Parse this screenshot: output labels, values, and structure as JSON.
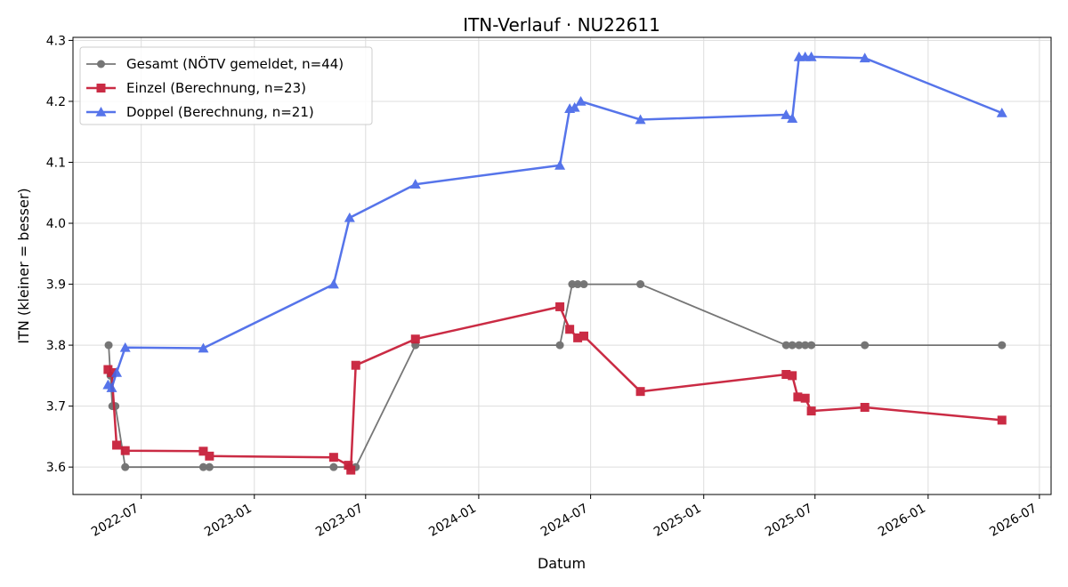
{
  "chart_data": {
    "type": "line",
    "title": "ITN-Verlauf · NU22611",
    "xlabel": "Datum",
    "ylabel": "ITN  (kleiner = besser)",
    "x_type": "date",
    "xlim": [
      "2022-03-12",
      "2026-07-20"
    ],
    "ylim": [
      3.555,
      4.305
    ],
    "x_ticks": [
      "2022-07",
      "2023-01",
      "2023-07",
      "2024-01",
      "2024-07",
      "2025-01",
      "2025-07",
      "2026-01",
      "2026-07"
    ],
    "y_ticks": [
      3.6,
      3.7,
      3.8,
      3.9,
      4.0,
      4.1,
      4.2,
      4.3
    ],
    "grid": true,
    "legend_position": "top-left",
    "series": [
      {
        "name": "Gesamt (NÖTV gemeldet, n=44)",
        "color": "#555555",
        "marker": "circle",
        "points": [
          [
            "2022-05-09",
            3.8
          ],
          [
            "2022-05-12",
            3.75
          ],
          [
            "2022-05-15",
            3.7
          ],
          [
            "2022-05-20",
            3.7
          ],
          [
            "2022-06-05",
            3.6
          ],
          [
            "2022-10-10",
            3.6
          ],
          [
            "2022-10-20",
            3.6
          ],
          [
            "2023-05-10",
            3.6
          ],
          [
            "2023-06-05",
            3.6
          ],
          [
            "2023-06-15",
            3.6
          ],
          [
            "2023-09-20",
            3.8
          ],
          [
            "2024-05-12",
            3.8
          ],
          [
            "2024-06-01",
            3.9
          ],
          [
            "2024-06-10",
            3.9
          ],
          [
            "2024-06-20",
            3.9
          ],
          [
            "2024-09-20",
            3.9
          ],
          [
            "2025-05-15",
            3.8
          ],
          [
            "2025-05-25",
            3.8
          ],
          [
            "2025-06-05",
            3.8
          ],
          [
            "2025-06-15",
            3.8
          ],
          [
            "2025-06-25",
            3.8
          ],
          [
            "2025-09-20",
            3.8
          ],
          [
            "2026-05-01",
            3.8
          ]
        ]
      },
      {
        "name": "Einzel (Berechnung, n=23)",
        "color": "#c8203a",
        "marker": "square",
        "points": [
          [
            "2022-05-08",
            3.76
          ],
          [
            "2022-05-14",
            3.755
          ],
          [
            "2022-05-22",
            3.636
          ],
          [
            "2022-06-05",
            3.627
          ],
          [
            "2022-10-10",
            3.626
          ],
          [
            "2022-10-20",
            3.618
          ],
          [
            "2023-05-10",
            3.616
          ],
          [
            "2023-06-03",
            3.603
          ],
          [
            "2023-06-07",
            3.595
          ],
          [
            "2023-06-15",
            3.767
          ],
          [
            "2023-09-20",
            3.81
          ],
          [
            "2024-05-12",
            3.863
          ],
          [
            "2024-05-28",
            3.826
          ],
          [
            "2024-06-10",
            3.812
          ],
          [
            "2024-06-20",
            3.815
          ],
          [
            "2024-09-20",
            3.724
          ],
          [
            "2025-05-15",
            3.752
          ],
          [
            "2025-05-25",
            3.75
          ],
          [
            "2025-06-03",
            3.715
          ],
          [
            "2025-06-15",
            3.713
          ],
          [
            "2025-06-25",
            3.692
          ],
          [
            "2025-09-20",
            3.698
          ],
          [
            "2026-05-01",
            3.677
          ]
        ]
      },
      {
        "name": "Doppel (Berechnung, n=21)",
        "color": "#4466e8",
        "marker": "triangle",
        "points": [
          [
            "2022-05-08",
            3.735
          ],
          [
            "2022-05-14",
            3.73
          ],
          [
            "2022-05-22",
            3.755
          ],
          [
            "2022-06-05",
            3.796
          ],
          [
            "2022-10-10",
            3.795
          ],
          [
            "2023-05-10",
            3.9
          ],
          [
            "2023-06-05",
            4.009
          ],
          [
            "2023-09-20",
            4.064
          ],
          [
            "2024-05-12",
            4.095
          ],
          [
            "2024-05-28",
            4.188
          ],
          [
            "2024-06-05",
            4.19
          ],
          [
            "2024-06-15",
            4.2
          ],
          [
            "2024-09-20",
            4.17
          ],
          [
            "2025-05-15",
            4.178
          ],
          [
            "2025-05-25",
            4.172
          ],
          [
            "2025-06-05",
            4.273
          ],
          [
            "2025-06-15",
            4.273
          ],
          [
            "2025-06-25",
            4.273
          ],
          [
            "2025-09-20",
            4.271
          ],
          [
            "2026-05-01",
            4.181
          ]
        ]
      }
    ]
  }
}
